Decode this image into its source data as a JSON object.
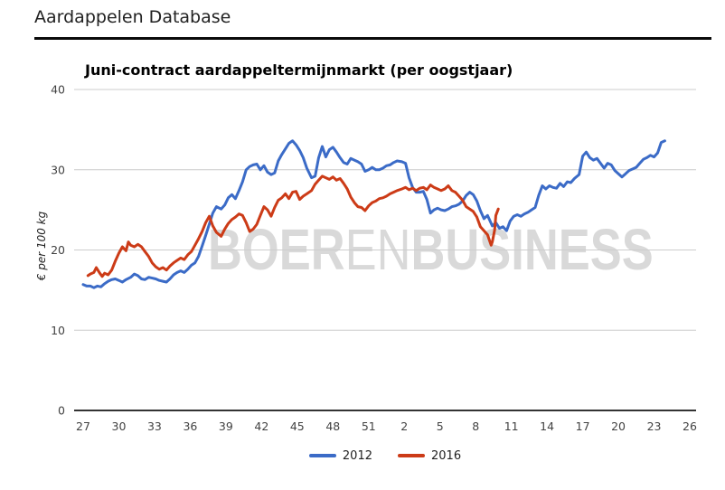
{
  "header": {
    "title": "Aardappelen Database"
  },
  "chart_data": {
    "type": "line",
    "title": "Juni-contract aardappeltermijnmarkt (per oogstjaar)",
    "ylabel": "€ per 100 kg",
    "xlabel": "",
    "x_unit": "weeknummer",
    "ylim": [
      0,
      40
    ],
    "yticks": [
      0,
      10,
      20,
      30,
      40
    ],
    "xtick_weeks": [
      "27",
      "30",
      "33",
      "36",
      "39",
      "42",
      "45",
      "48",
      "51",
      "2",
      "5",
      "8",
      "11",
      "14",
      "17",
      "20",
      "23",
      "26"
    ],
    "grid": true,
    "legend_position": "bottom",
    "colors": {
      "grid": "#cccccc",
      "axis": "#333333",
      "tick_label": "#424242",
      "watermark": "#d9d9d9"
    },
    "watermark": {
      "part1": "BOER",
      "part2": "EN",
      "part3": "BUSINESS"
    },
    "series": [
      {
        "name": "2012",
        "color": "#3b6bc7",
        "points": [
          [
            0,
            15.7
          ],
          [
            0.3,
            15.5
          ],
          [
            0.6,
            15.5
          ],
          [
            0.9,
            15.3
          ],
          [
            1.2,
            15.5
          ],
          [
            1.5,
            15.4
          ],
          [
            1.8,
            15.8
          ],
          [
            2.1,
            16.1
          ],
          [
            2.4,
            16.3
          ],
          [
            2.7,
            16.4
          ],
          [
            3,
            16.2
          ],
          [
            3.3,
            16
          ],
          [
            3.6,
            16.3
          ],
          [
            4,
            16.6
          ],
          [
            4.3,
            17
          ],
          [
            4.6,
            16.8
          ],
          [
            4.9,
            16.4
          ],
          [
            5.2,
            16.3
          ],
          [
            5.5,
            16.6
          ],
          [
            5.8,
            16.5
          ],
          [
            6.1,
            16.4
          ],
          [
            6.4,
            16.2
          ],
          [
            6.7,
            16.1
          ],
          [
            7,
            16
          ],
          [
            7.3,
            16.4
          ],
          [
            7.6,
            16.9
          ],
          [
            7.9,
            17.2
          ],
          [
            8.2,
            17.4
          ],
          [
            8.5,
            17.2
          ],
          [
            8.8,
            17.6
          ],
          [
            9.1,
            18.1
          ],
          [
            9.4,
            18.4
          ],
          [
            9.7,
            19.2
          ],
          [
            10,
            20.5
          ],
          [
            10.3,
            21.8
          ],
          [
            10.6,
            23.2
          ],
          [
            10.9,
            24.6
          ],
          [
            11.2,
            25.4
          ],
          [
            11.6,
            25.1
          ],
          [
            11.9,
            25.6
          ],
          [
            12.2,
            26.5
          ],
          [
            12.5,
            26.9
          ],
          [
            12.8,
            26.4
          ],
          [
            13.1,
            27.4
          ],
          [
            13.4,
            28.5
          ],
          [
            13.7,
            30
          ],
          [
            14,
            30.4
          ],
          [
            14.3,
            30.6
          ],
          [
            14.6,
            30.7
          ],
          [
            14.9,
            30
          ],
          [
            15.2,
            30.5
          ],
          [
            15.5,
            29.7
          ],
          [
            15.8,
            29.4
          ],
          [
            16.1,
            29.6
          ],
          [
            16.4,
            31.1
          ],
          [
            16.7,
            31.9
          ],
          [
            17,
            32.6
          ],
          [
            17.3,
            33.3
          ],
          [
            17.6,
            33.6
          ],
          [
            17.9,
            33.1
          ],
          [
            18.2,
            32.4
          ],
          [
            18.5,
            31.5
          ],
          [
            18.8,
            30.2
          ],
          [
            19.2,
            29
          ],
          [
            19.5,
            29.2
          ],
          [
            19.8,
            31.5
          ],
          [
            20.1,
            32.9
          ],
          [
            20.4,
            31.6
          ],
          [
            20.7,
            32.5
          ],
          [
            21,
            32.8
          ],
          [
            21.3,
            32.2
          ],
          [
            21.6,
            31.5
          ],
          [
            21.9,
            30.9
          ],
          [
            22.2,
            30.7
          ],
          [
            22.5,
            31.4
          ],
          [
            22.8,
            31.2
          ],
          [
            23.1,
            31
          ],
          [
            23.4,
            30.7
          ],
          [
            23.7,
            29.8
          ],
          [
            24,
            30
          ],
          [
            24.3,
            30.3
          ],
          [
            24.6,
            30
          ],
          [
            24.9,
            30
          ],
          [
            25.2,
            30.2
          ],
          [
            25.5,
            30.5
          ],
          [
            25.8,
            30.6
          ],
          [
            26.1,
            30.9
          ],
          [
            26.4,
            31.1
          ],
          [
            26.8,
            31
          ],
          [
            27.1,
            30.8
          ],
          [
            27.4,
            29
          ],
          [
            27.7,
            27.8
          ],
          [
            28,
            27.2
          ],
          [
            28.3,
            27.2
          ],
          [
            28.6,
            27.3
          ],
          [
            28.9,
            26.3
          ],
          [
            29.2,
            24.6
          ],
          [
            29.5,
            25
          ],
          [
            29.8,
            25.2
          ],
          [
            30.1,
            25
          ],
          [
            30.4,
            24.9
          ],
          [
            30.7,
            25.1
          ],
          [
            31,
            25.4
          ],
          [
            31.3,
            25.5
          ],
          [
            31.6,
            25.7
          ],
          [
            31.9,
            26.1
          ],
          [
            32.2,
            26.8
          ],
          [
            32.5,
            27.2
          ],
          [
            32.8,
            26.9
          ],
          [
            33.1,
            26.1
          ],
          [
            33.4,
            24.9
          ],
          [
            33.7,
            23.9
          ],
          [
            34,
            24.3
          ],
          [
            34.4,
            23
          ],
          [
            34.7,
            23.4
          ],
          [
            35,
            22.7
          ],
          [
            35.3,
            22.9
          ],
          [
            35.6,
            22.4
          ],
          [
            35.9,
            23.6
          ],
          [
            36.2,
            24.2
          ],
          [
            36.5,
            24.4
          ],
          [
            36.8,
            24.2
          ],
          [
            37.1,
            24.5
          ],
          [
            37.4,
            24.7
          ],
          [
            37.7,
            25
          ],
          [
            38,
            25.3
          ],
          [
            38.3,
            26.8
          ],
          [
            38.6,
            28
          ],
          [
            38.9,
            27.6
          ],
          [
            39.2,
            28
          ],
          [
            39.5,
            27.8
          ],
          [
            39.8,
            27.7
          ],
          [
            40.1,
            28.3
          ],
          [
            40.4,
            27.9
          ],
          [
            40.7,
            28.5
          ],
          [
            41,
            28.4
          ],
          [
            41.3,
            28.9
          ],
          [
            41.7,
            29.4
          ],
          [
            42,
            31.7
          ],
          [
            42.3,
            32.2
          ],
          [
            42.6,
            31.5
          ],
          [
            42.9,
            31.2
          ],
          [
            43.2,
            31.4
          ],
          [
            43.5,
            30.8
          ],
          [
            43.8,
            30.2
          ],
          [
            44.1,
            30.8
          ],
          [
            44.4,
            30.6
          ],
          [
            44.7,
            29.9
          ],
          [
            45,
            29.5
          ],
          [
            45.3,
            29.1
          ],
          [
            45.6,
            29.5
          ],
          [
            45.9,
            29.9
          ],
          [
            46.2,
            30.1
          ],
          [
            46.5,
            30.3
          ],
          [
            46.8,
            30.8
          ],
          [
            47.1,
            31.3
          ],
          [
            47.4,
            31.5
          ],
          [
            47.7,
            31.8
          ],
          [
            48,
            31.6
          ],
          [
            48.3,
            32.1
          ],
          [
            48.6,
            33.4
          ],
          [
            48.9,
            33.6
          ]
        ]
      },
      {
        "name": "2016",
        "color": "#cc3b17",
        "points": [
          [
            0.4,
            16.8
          ],
          [
            0.6,
            17
          ],
          [
            0.9,
            17.2
          ],
          [
            1.1,
            17.8
          ],
          [
            1.4,
            17.1
          ],
          [
            1.6,
            16.7
          ],
          [
            1.8,
            17.1
          ],
          [
            2.1,
            16.9
          ],
          [
            2.4,
            17.5
          ],
          [
            2.7,
            18.6
          ],
          [
            3,
            19.6
          ],
          [
            3.3,
            20.4
          ],
          [
            3.6,
            19.9
          ],
          [
            3.8,
            21
          ],
          [
            4,
            20.6
          ],
          [
            4.3,
            20.4
          ],
          [
            4.6,
            20.7
          ],
          [
            4.9,
            20.4
          ],
          [
            5.2,
            19.8
          ],
          [
            5.5,
            19.2
          ],
          [
            5.8,
            18.4
          ],
          [
            6.1,
            17.9
          ],
          [
            6.4,
            17.6
          ],
          [
            6.7,
            17.8
          ],
          [
            7,
            17.5
          ],
          [
            7.3,
            18
          ],
          [
            7.6,
            18.4
          ],
          [
            7.9,
            18.7
          ],
          [
            8.2,
            19
          ],
          [
            8.5,
            18.8
          ],
          [
            8.8,
            19.4
          ],
          [
            9.1,
            19.8
          ],
          [
            9.4,
            20.6
          ],
          [
            9.7,
            21.4
          ],
          [
            10,
            22.3
          ],
          [
            10.3,
            23.4
          ],
          [
            10.6,
            24.2
          ],
          [
            10.9,
            23
          ],
          [
            11.2,
            22.2
          ],
          [
            11.6,
            21.7
          ],
          [
            11.9,
            22.6
          ],
          [
            12.2,
            23.3
          ],
          [
            12.5,
            23.8
          ],
          [
            12.8,
            24.1
          ],
          [
            13.1,
            24.5
          ],
          [
            13.4,
            24.3
          ],
          [
            13.7,
            23.4
          ],
          [
            14,
            22.3
          ],
          [
            14.3,
            22.6
          ],
          [
            14.6,
            23.2
          ],
          [
            14.9,
            24.3
          ],
          [
            15.2,
            25.4
          ],
          [
            15.5,
            25
          ],
          [
            15.8,
            24.2
          ],
          [
            16.1,
            25.3
          ],
          [
            16.4,
            26.2
          ],
          [
            16.7,
            26.5
          ],
          [
            17,
            27
          ],
          [
            17.3,
            26.4
          ],
          [
            17.6,
            27.2
          ],
          [
            17.9,
            27.3
          ],
          [
            18.2,
            26.3
          ],
          [
            18.5,
            26.7
          ],
          [
            18.8,
            27
          ],
          [
            19.2,
            27.4
          ],
          [
            19.5,
            28.2
          ],
          [
            19.8,
            28.7
          ],
          [
            20.1,
            29.2
          ],
          [
            20.4,
            29
          ],
          [
            20.7,
            28.8
          ],
          [
            21,
            29.1
          ],
          [
            21.3,
            28.7
          ],
          [
            21.6,
            28.9
          ],
          [
            21.9,
            28.3
          ],
          [
            22.2,
            27.6
          ],
          [
            22.5,
            26.6
          ],
          [
            22.8,
            25.9
          ],
          [
            23.1,
            25.4
          ],
          [
            23.4,
            25.3
          ],
          [
            23.7,
            24.9
          ],
          [
            24,
            25.5
          ],
          [
            24.3,
            25.9
          ],
          [
            24.6,
            26.1
          ],
          [
            24.9,
            26.4
          ],
          [
            25.2,
            26.5
          ],
          [
            25.5,
            26.7
          ],
          [
            25.8,
            27
          ],
          [
            26.1,
            27.2
          ],
          [
            26.4,
            27.4
          ],
          [
            26.8,
            27.6
          ],
          [
            27.1,
            27.8
          ],
          [
            27.4,
            27.5
          ],
          [
            27.7,
            27.7
          ],
          [
            28,
            27.4
          ],
          [
            28.3,
            27.7
          ],
          [
            28.6,
            27.8
          ],
          [
            28.9,
            27.5
          ],
          [
            29.2,
            28.1
          ],
          [
            29.5,
            27.8
          ],
          [
            29.8,
            27.6
          ],
          [
            30.1,
            27.4
          ],
          [
            30.4,
            27.6
          ],
          [
            30.7,
            28
          ],
          [
            31,
            27.4
          ],
          [
            31.3,
            27.2
          ],
          [
            31.6,
            26.7
          ],
          [
            31.9,
            26.2
          ],
          [
            32.2,
            25.4
          ],
          [
            32.5,
            25.1
          ],
          [
            32.8,
            24.8
          ],
          [
            33.1,
            24.1
          ],
          [
            33.4,
            22.9
          ],
          [
            33.7,
            22.4
          ],
          [
            34,
            21.9
          ],
          [
            34.3,
            20.6
          ],
          [
            34.4,
            21
          ],
          [
            34.6,
            22.5
          ],
          [
            34.7,
            24.3
          ],
          [
            34.9,
            25.1
          ]
        ]
      }
    ]
  }
}
